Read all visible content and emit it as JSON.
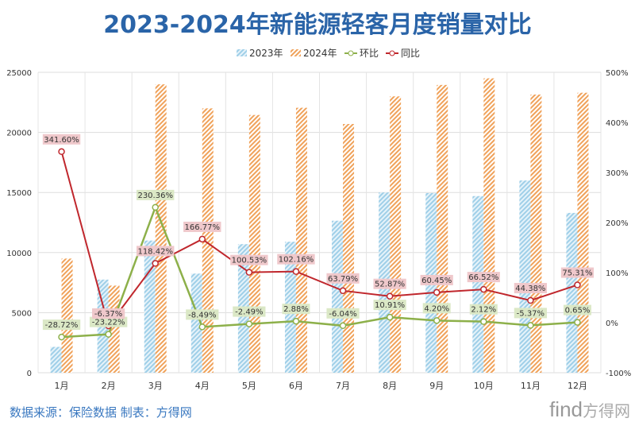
{
  "chart_data": {
    "type": "bar",
    "title": "2023-2024年新能源轻客月度销量对比",
    "categories": [
      "1月",
      "2月",
      "3月",
      "4月",
      "5月",
      "6月",
      "7月",
      "8月",
      "9月",
      "10月",
      "11月",
      "12月"
    ],
    "y_left": {
      "range": [
        0,
        25000
      ],
      "ticks": [
        "0",
        "5000",
        "10000",
        "15000",
        "20000",
        "25000"
      ]
    },
    "y_right": {
      "range": [
        -100,
        500
      ],
      "ticks": [
        "-100%",
        "0%",
        "100%",
        "200%",
        "300%",
        "400%",
        "500%"
      ]
    },
    "grid": true,
    "legend_placement": "top-right",
    "series": [
      {
        "name": "2023年",
        "type": "bar",
        "axis": "left",
        "color": "#9fcfe8",
        "values": [
          2150,
          7750,
          11000,
          8250,
          10700,
          10900,
          12650,
          15000,
          14950,
          14700,
          16000,
          13300
        ]
      },
      {
        "name": "2024年",
        "type": "bar",
        "axis": "left",
        "color": "#f0a25a",
        "values": [
          9500,
          7250,
          24000,
          22000,
          21450,
          22050,
          20700,
          23000,
          23950,
          24500,
          23150,
          23300
        ]
      },
      {
        "name": "环比",
        "type": "line",
        "axis": "right",
        "color": "#8db04a",
        "values": [
          -28.72,
          -23.22,
          230.36,
          -8.49,
          -2.49,
          2.88,
          -6.04,
          10.91,
          4.2,
          2.12,
          -5.37,
          0.65
        ],
        "labels": [
          "-28.72%",
          "-23.22%",
          "230.36%",
          "-8.49%",
          "-2.49%",
          "2.88%",
          "-6.04%",
          "10.91%",
          "4.20%",
          "2.12%",
          "-5.37%",
          "0.65%"
        ]
      },
      {
        "name": "同比",
        "type": "line",
        "axis": "right",
        "color": "#c0272d",
        "values": [
          341.6,
          -6.37,
          118.42,
          166.77,
          100.53,
          102.16,
          63.79,
          52.87,
          60.45,
          66.52,
          44.38,
          75.31
        ],
        "labels": [
          "341.60%",
          "-6.37%",
          "118.42%",
          "166.77%",
          "100.53%",
          "102.16%",
          "63.79%",
          "52.87%",
          "60.45%",
          "66.52%",
          "44.38%",
          "75.31%"
        ]
      }
    ]
  },
  "footer": {
    "source": "数据来源：保险数据 制表：方得网"
  },
  "logo": {
    "text": "find方得网"
  }
}
